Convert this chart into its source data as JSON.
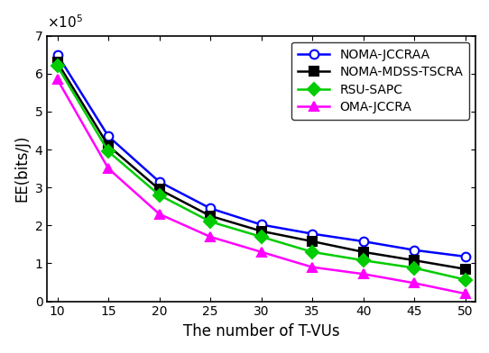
{
  "x": [
    10,
    15,
    20,
    25,
    30,
    35,
    40,
    45,
    50
  ],
  "noma_jccraa": [
    650000,
    435000,
    315000,
    245000,
    202000,
    178000,
    158000,
    135000,
    118000
  ],
  "noma_mdss_tscra": [
    630000,
    410000,
    295000,
    225000,
    185000,
    158000,
    130000,
    108000,
    85000
  ],
  "rsu_sapc": [
    620000,
    395000,
    280000,
    210000,
    170000,
    130000,
    108000,
    88000,
    57000
  ],
  "oma_jccra": [
    585000,
    350000,
    230000,
    170000,
    130000,
    90000,
    72000,
    48000,
    20000
  ],
  "colors": {
    "noma_jccraa": "#0000ff",
    "noma_mdss_tscra": "#000000",
    "rsu_sapc": "#00cc00",
    "oma_jccra": "#ff00ff"
  },
  "markers": {
    "noma_jccraa": "o",
    "noma_mdss_tscra": "s",
    "rsu_sapc": "D",
    "oma_jccra": "^"
  },
  "labels": {
    "noma_jccraa": "NOMA-JCCRAA",
    "noma_mdss_tscra": "NOMA-MDSS-TSCRA",
    "rsu_sapc": "RSU-SAPC",
    "oma_jccra": "OMA-JCCRA"
  },
  "xlabel": "The number of T-VUs",
  "ylabel": "EE(bits/J)",
  "ylim": [
    0,
    700000
  ],
  "xlim": [
    9,
    51
  ],
  "yticks": [
    0,
    100000,
    200000,
    300000,
    400000,
    500000,
    600000,
    700000
  ],
  "figsize": [
    5.42,
    3.92
  ],
  "dpi": 100
}
